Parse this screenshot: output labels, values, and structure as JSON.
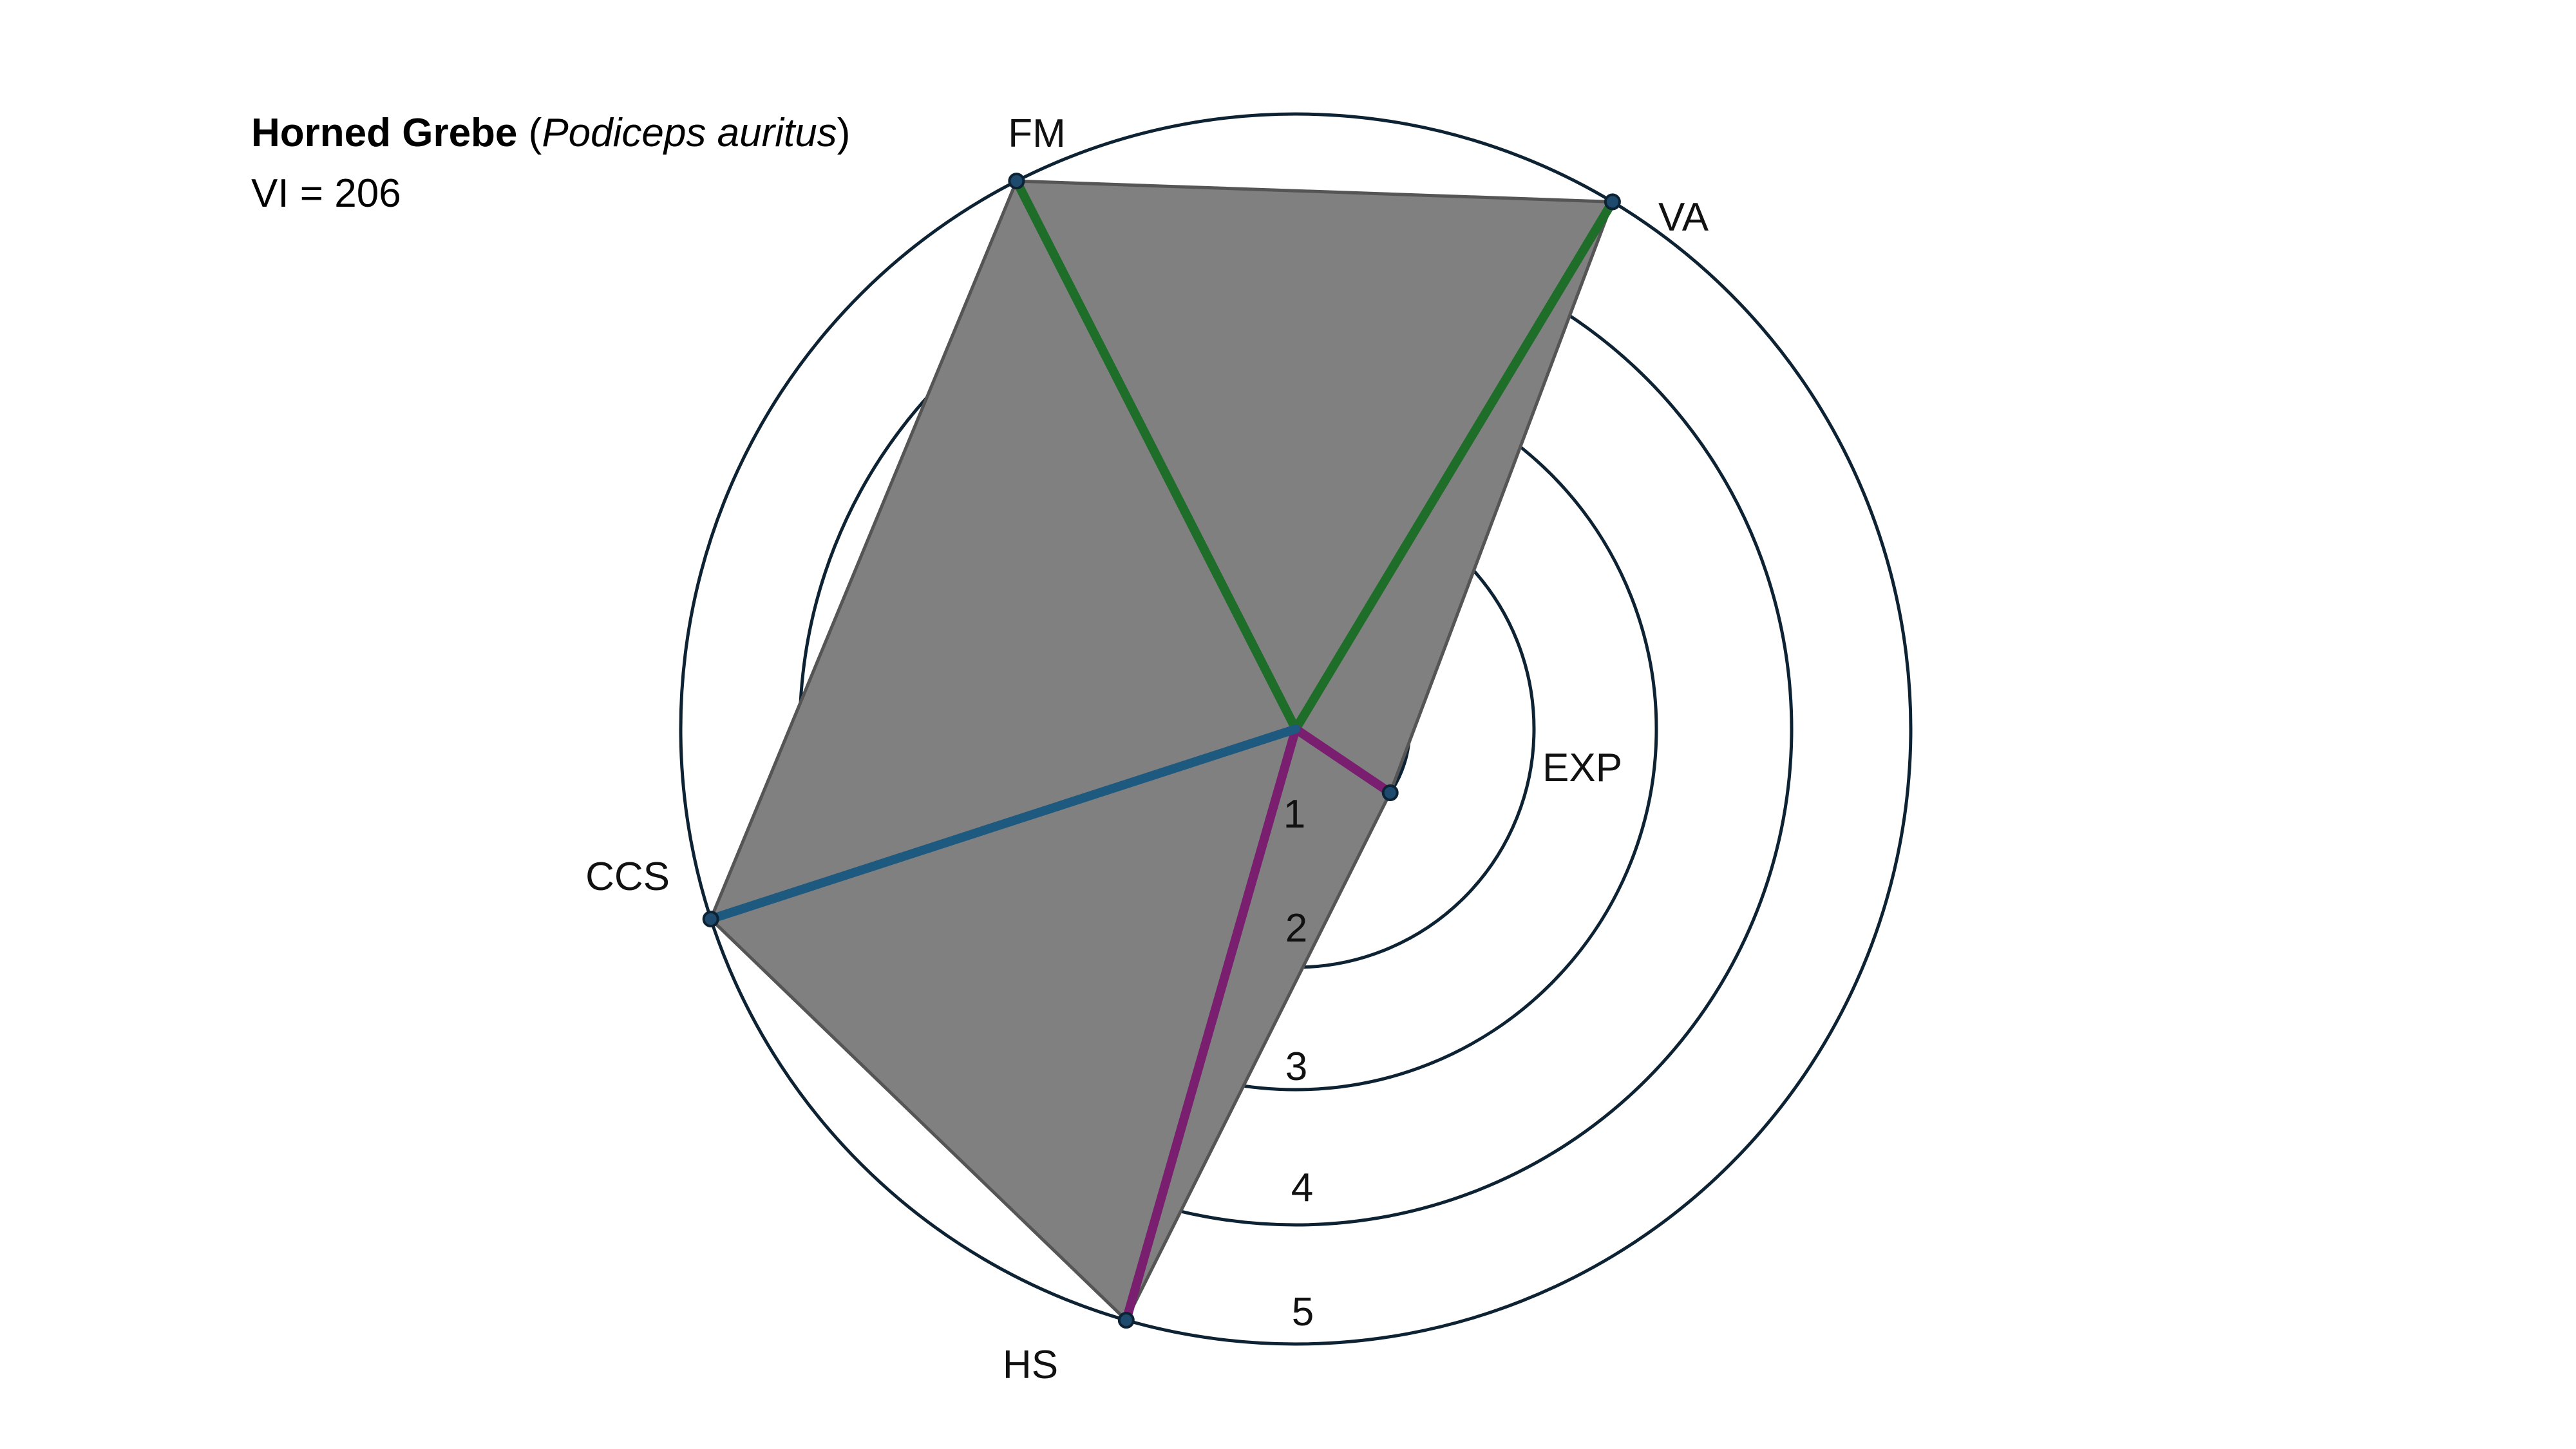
{
  "title": {
    "common_name": "Horned Grebe",
    "open_paren": "(",
    "latin_name": "Podiceps auritus",
    "close_paren": ")",
    "index_line": "VI = 206"
  },
  "chart_data": {
    "type": "radar",
    "title": "Horned Grebe (Podiceps auritus)",
    "subtitle": "VI = 206",
    "rlim": [
      0,
      5
    ],
    "ring_ticks": [
      1,
      2,
      3,
      4,
      5
    ],
    "grid": true,
    "axes": [
      {
        "key": "FM",
        "label": "FM",
        "value": 5.0,
        "angle_deg": 117,
        "color": "#1e6e2a"
      },
      {
        "key": "VA",
        "label": "VA",
        "value": 5.0,
        "angle_deg": 59,
        "color": "#1e6e2a"
      },
      {
        "key": "EXP",
        "label": "EXP",
        "value": 1.0,
        "angle_deg": -34,
        "color": "#7a1e70"
      },
      {
        "key": "HS",
        "label": "HS",
        "value": 5.0,
        "angle_deg": -106,
        "color": "#7a1e70"
      },
      {
        "key": "CCS",
        "label": "CCS",
        "value": 5.0,
        "angle_deg": -162,
        "color": "#1e5a80"
      }
    ],
    "polygon_fill": "#808080",
    "polygon_stroke": "#555555",
    "ring_color": "#0d2233"
  }
}
